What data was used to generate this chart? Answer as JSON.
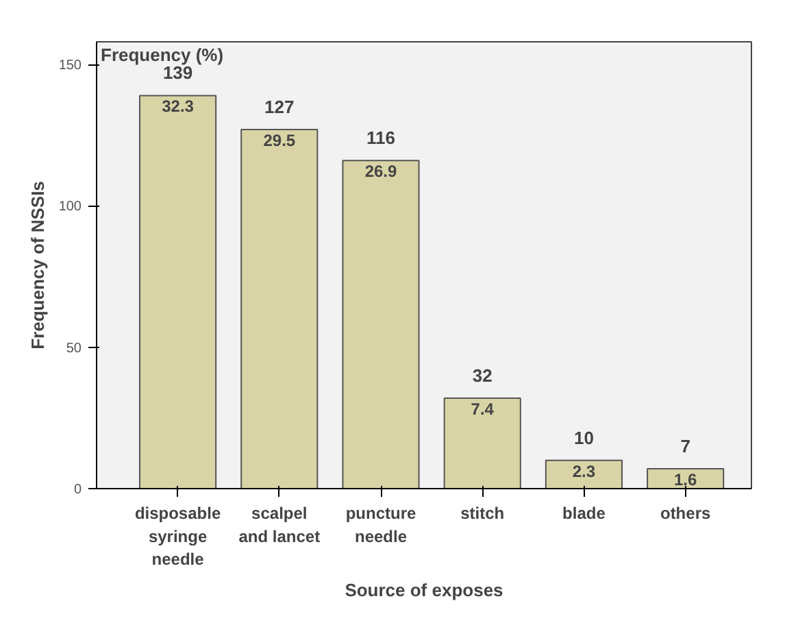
{
  "chart_data": {
    "type": "bar",
    "xlabel": "Source of exposes",
    "ylabel": "Frequency of NSSIs",
    "categories": [
      "disposable\nsyringe\nneedle",
      "scalpel\nand lancet",
      "puncture\nneedle",
      "stitch",
      "blade",
      "others"
    ],
    "values": [
      139,
      127,
      116,
      32,
      10,
      7
    ],
    "data_labels": true,
    "color": "#d9d4a6",
    "ylim": [
      0,
      158
    ],
    "yticks": [
      0,
      50,
      100,
      150
    ],
    "grid": false,
    "annotations": [
      "Frequency (%)",
      {
        "text": "32.3",
        "x": "disposable\nsyringe\nneedle",
        "y": 139
      },
      {
        "text": "29.5",
        "x": "scalpel\nand lancet",
        "y": 127
      },
      {
        "text": "26.9",
        "x": "puncture\nneedle",
        "y": 116
      },
      {
        "text": "7.4",
        "x": "stitch",
        "y": 32
      },
      {
        "text": "2.3",
        "x": "blade",
        "y": 10
      },
      {
        "text": "1.6",
        "x": "others",
        "y": 7
      }
    ]
  }
}
